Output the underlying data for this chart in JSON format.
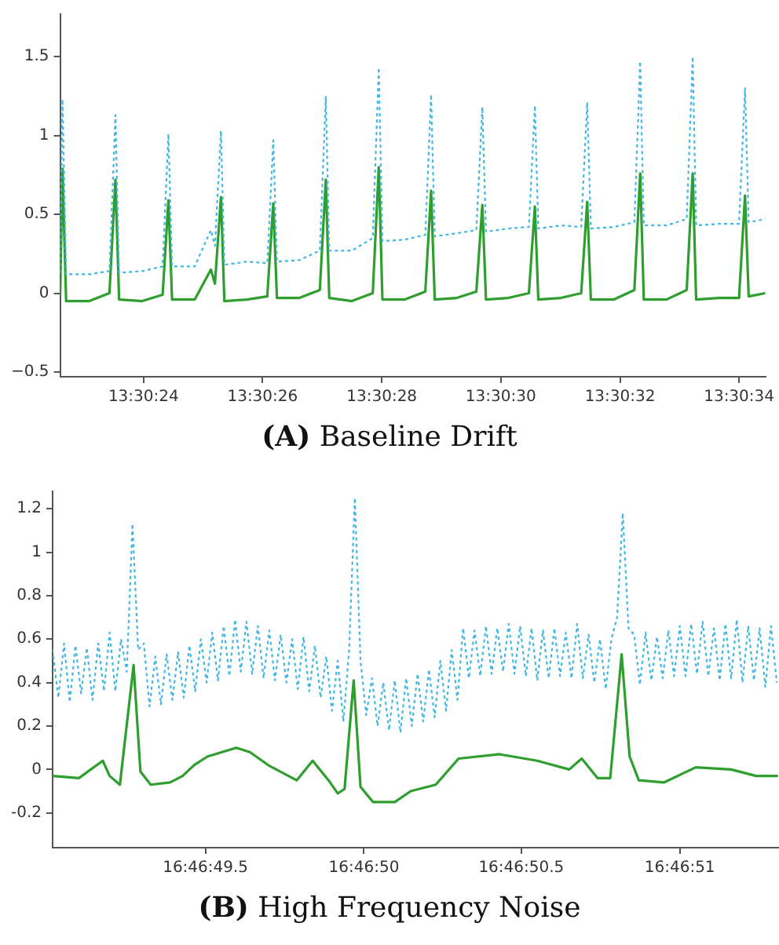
{
  "chart_data": [
    {
      "type": "line",
      "title": "(A) Baseline Drift",
      "x": [
        13.506278,
        13.506289,
        13.506306,
        13.506414,
        13.506508,
        13.506536,
        13.506553,
        13.506661,
        13.506756,
        13.506783,
        13.5068,
        13.506906,
        13.506981,
        13.507,
        13.507028,
        13.507044,
        13.50715,
        13.507244,
        13.507272,
        13.507289,
        13.507394,
        13.507489,
        13.507517,
        13.507533,
        13.507639,
        13.507736,
        13.507764,
        13.507781,
        13.507886,
        13.507981,
        13.508008,
        13.508025,
        13.508128,
        13.508219,
        13.508247,
        13.508264,
        13.508369,
        13.508464,
        13.508492,
        13.508508,
        13.508614,
        13.508708,
        13.508736,
        13.508753,
        13.508861,
        13.508956,
        13.508983,
        13.509,
        13.509106,
        13.5092,
        13.509228,
        13.509244,
        13.50935,
        13.509444,
        13.509472,
        13.509489,
        13.509567
      ],
      "series": [
        {
          "color": "#41b6e6",
          "line_style": "dotted",
          "values": [
            0.13,
            1.23,
            0.12,
            0.12,
            0.14,
            1.13,
            0.13,
            0.14,
            0.17,
            1.01,
            0.17,
            0.17,
            0.4,
            0.3,
            1.03,
            0.18,
            0.2,
            0.19,
            0.97,
            0.2,
            0.21,
            0.27,
            1.25,
            0.27,
            0.27,
            0.35,
            1.43,
            0.33,
            0.34,
            0.37,
            1.26,
            0.36,
            0.38,
            0.4,
            1.18,
            0.39,
            0.41,
            0.42,
            1.19,
            0.41,
            0.43,
            0.42,
            1.21,
            0.41,
            0.42,
            0.45,
            1.47,
            0.43,
            0.43,
            0.47,
            1.5,
            0.43,
            0.44,
            0.44,
            1.3,
            0.45,
            0.47
          ]
        },
        {
          "color": "#2e9e2e",
          "line_style": "solid",
          "values": [
            -0.02,
            0.79,
            -0.05,
            -0.05,
            0.0,
            0.72,
            -0.04,
            -0.05,
            -0.01,
            0.59,
            -0.04,
            -0.04,
            0.15,
            0.06,
            0.61,
            -0.05,
            -0.04,
            -0.02,
            0.57,
            -0.03,
            -0.03,
            0.02,
            0.72,
            -0.03,
            -0.05,
            0.0,
            0.8,
            -0.04,
            -0.04,
            0.01,
            0.65,
            -0.04,
            -0.03,
            0.01,
            0.56,
            -0.04,
            -0.03,
            0.0,
            0.55,
            -0.04,
            -0.03,
            0.0,
            0.58,
            -0.04,
            -0.04,
            0.02,
            0.76,
            -0.04,
            -0.04,
            0.02,
            0.76,
            -0.04,
            -0.03,
            -0.03,
            0.62,
            -0.02,
            0.0
          ]
        }
      ],
      "xlim": [
        13.506278,
        13.509567
      ],
      "xticks": [
        {
          "value": 13.506667,
          "label": "13:30:24"
        },
        {
          "value": 13.507222,
          "label": "13:30:26"
        },
        {
          "value": 13.507778,
          "label": "13:30:28"
        },
        {
          "value": 13.508333,
          "label": "13:30:30"
        },
        {
          "value": 13.508889,
          "label": "13:30:32"
        },
        {
          "value": 13.509444,
          "label": "13:30:34"
        }
      ],
      "ylim": [
        -0.53,
        1.77
      ],
      "yticks": [
        {
          "value": -0.5,
          "label": "−0.5"
        },
        0,
        0.5,
        1,
        1.5
      ]
    },
    {
      "type": "line",
      "title": "(B) High Frequency Noise",
      "series": [
        {
          "color": "#41b6e6",
          "line_style": "dotted",
          "x": [
            16.780283,
            16.780288,
            16.780293,
            16.780298,
            16.780303,
            16.780308,
            16.780313,
            16.780318,
            16.780323,
            16.780328,
            16.780333,
            16.780338,
            16.780343,
            16.780348,
            16.780353,
            16.780358,
            16.780363,
            16.780368,
            16.780373,
            16.780378,
            16.780383,
            16.780388,
            16.780393,
            16.780398,
            16.780403,
            16.780408,
            16.780413,
            16.780418,
            16.780423,
            16.780428,
            16.780433,
            16.780438,
            16.780443,
            16.780448,
            16.780453,
            16.780458,
            16.780463,
            16.780468,
            16.780473,
            16.780478,
            16.780483,
            16.780488,
            16.780493,
            16.780498,
            16.780503,
            16.780508,
            16.780513,
            16.780518,
            16.780523,
            16.780528,
            16.780533,
            16.780538,
            16.780543,
            16.780548,
            16.780553,
            16.780558,
            16.780563,
            16.780568,
            16.780573,
            16.780578,
            16.780583,
            16.780588,
            16.780593,
            16.780598,
            16.780603,
            16.780608,
            16.780613,
            16.780618,
            16.780623,
            16.780628,
            16.780633,
            16.780638,
            16.780643,
            16.780648,
            16.780653,
            16.780658,
            16.780663,
            16.780668,
            16.780673,
            16.780678,
            16.780683,
            16.780688,
            16.780693,
            16.780698,
            16.780703,
            16.780708,
            16.780713,
            16.780718,
            16.780723,
            16.780728,
            16.780733,
            16.780738,
            16.780743,
            16.780748,
            16.780753,
            16.780758,
            16.780763,
            16.780768,
            16.780773,
            16.780778,
            16.780783,
            16.780788,
            16.780793,
            16.780798,
            16.780803,
            16.780808,
            16.780813,
            16.780818,
            16.780823,
            16.780828,
            16.780833,
            16.780838,
            16.780843,
            16.780848,
            16.780853,
            16.780858,
            16.780863,
            16.780868,
            16.780873,
            16.780878,
            16.780883,
            16.780888,
            16.780893,
            16.780898,
            16.780903,
            16.780908,
            16.780913,
            16.780918
          ],
          "values": [
            0.55,
            0.33,
            0.58,
            0.31,
            0.57,
            0.35,
            0.56,
            0.32,
            0.58,
            0.36,
            0.63,
            0.36,
            0.6,
            0.45,
            1.13,
            0.55,
            0.58,
            0.29,
            0.52,
            0.3,
            0.53,
            0.32,
            0.54,
            0.33,
            0.57,
            0.36,
            0.6,
            0.4,
            0.63,
            0.41,
            0.66,
            0.43,
            0.69,
            0.45,
            0.68,
            0.44,
            0.66,
            0.42,
            0.64,
            0.41,
            0.62,
            0.4,
            0.6,
            0.37,
            0.61,
            0.36,
            0.57,
            0.33,
            0.52,
            0.27,
            0.5,
            0.22,
            0.55,
            1.25,
            0.5,
            0.25,
            0.42,
            0.2,
            0.4,
            0.18,
            0.41,
            0.17,
            0.42,
            0.2,
            0.44,
            0.22,
            0.46,
            0.24,
            0.5,
            0.27,
            0.55,
            0.32,
            0.65,
            0.42,
            0.64,
            0.43,
            0.66,
            0.44,
            0.65,
            0.45,
            0.67,
            0.44,
            0.66,
            0.43,
            0.65,
            0.41,
            0.64,
            0.42,
            0.65,
            0.43,
            0.63,
            0.42,
            0.67,
            0.42,
            0.62,
            0.4,
            0.6,
            0.37,
            0.6,
            0.7,
            1.18,
            0.65,
            0.62,
            0.39,
            0.63,
            0.41,
            0.61,
            0.42,
            0.64,
            0.43,
            0.66,
            0.43,
            0.67,
            0.44,
            0.68,
            0.43,
            0.65,
            0.41,
            0.67,
            0.42,
            0.69,
            0.4,
            0.66,
            0.41,
            0.65,
            0.38,
            0.66,
            0.4
          ]
        },
        {
          "color": "#2e9e2e",
          "line_style": "solid",
          "x": [
            16.780283,
            16.780306,
            16.780327,
            16.780333,
            16.780342,
            16.780354,
            16.78036,
            16.780369,
            16.780386,
            16.780397,
            16.780407,
            16.780419,
            16.780444,
            16.780456,
            16.780472,
            16.780497,
            16.780511,
            16.780525,
            16.780533,
            16.780539,
            16.780547,
            16.780553,
            16.780564,
            16.780583,
            16.780597,
            16.780619,
            16.780639,
            16.780675,
            16.780708,
            16.780736,
            16.780747,
            16.780761,
            16.780772,
            16.780782,
            16.780789,
            16.780797,
            16.780819,
            16.780847,
            16.780878,
            16.7809,
            16.780919
          ],
          "values": [
            -0.03,
            -0.04,
            0.04,
            -0.03,
            -0.07,
            0.48,
            -0.01,
            -0.07,
            -0.06,
            -0.03,
            0.02,
            0.06,
            0.1,
            0.08,
            0.02,
            -0.05,
            0.04,
            -0.05,
            -0.11,
            -0.09,
            0.41,
            -0.08,
            -0.15,
            -0.15,
            -0.1,
            -0.07,
            0.05,
            0.07,
            0.04,
            0.0,
            0.05,
            -0.04,
            -0.04,
            0.53,
            0.06,
            -0.05,
            -0.06,
            0.01,
            0.0,
            -0.03,
            -0.03
          ]
        }
      ],
      "xlim": [
        16.780283,
        16.78092
      ],
      "xticks": [
        {
          "value": 16.780417,
          "label": "16:46:49.5"
        },
        {
          "value": 16.780556,
          "label": "16:46:50"
        },
        {
          "value": 16.780694,
          "label": "16:46:50.5"
        },
        {
          "value": 16.780833,
          "label": "16:46:51"
        }
      ],
      "ylim": [
        -0.36,
        1.28
      ],
      "yticks": [
        {
          "value": -0.2,
          "label": "-0.2"
        },
        0,
        0.2,
        0.4,
        0.6,
        0.8,
        1,
        1.2
      ]
    }
  ]
}
